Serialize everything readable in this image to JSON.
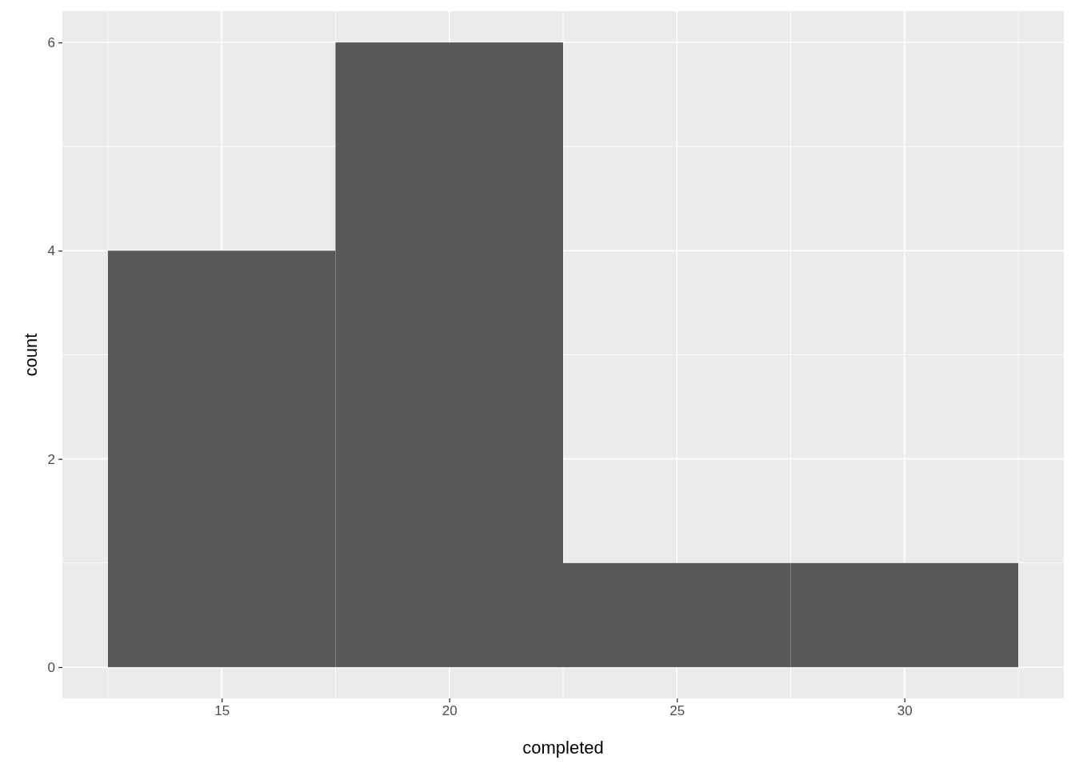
{
  "chart_data": {
    "type": "histogram",
    "xlabel": "completed",
    "ylabel": "count",
    "bins": [
      12.5,
      17.5,
      22.5,
      27.5,
      32.5
    ],
    "values": [
      4,
      6,
      1,
      1
    ],
    "color": "#595959",
    "xlim": [
      11.5,
      33.5
    ],
    "ylim": [
      -0.3,
      6.3
    ],
    "xticks": [
      15,
      20,
      25,
      30
    ],
    "yticks": [
      0,
      2,
      4,
      6
    ],
    "grid": true
  }
}
